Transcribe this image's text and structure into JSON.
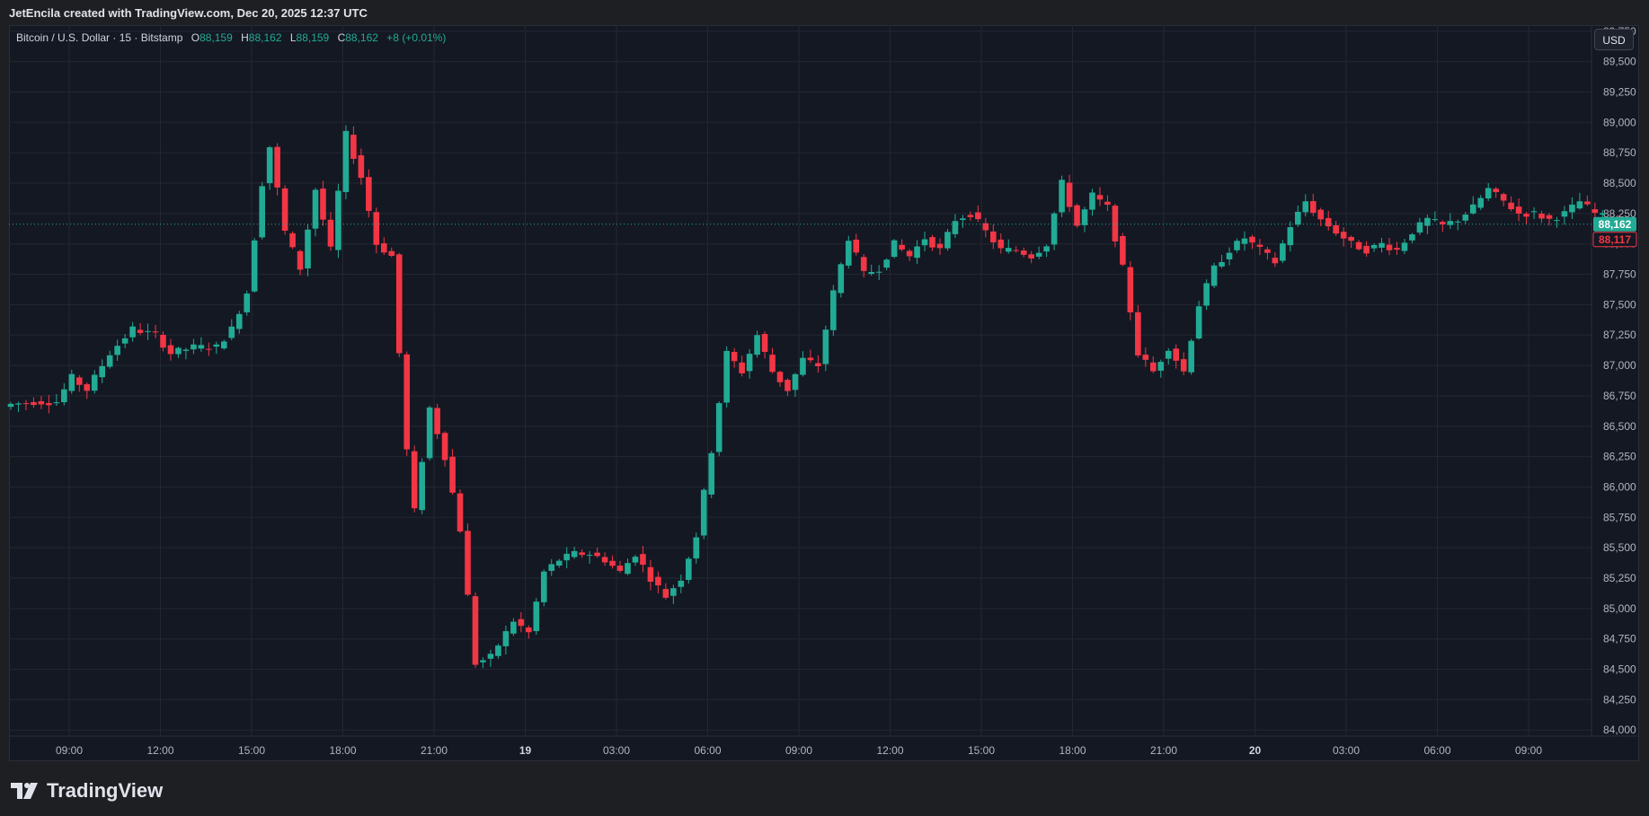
{
  "header": {
    "title": "JetEncila created with TradingView.com, Dec 20, 2025 12:37 UTC"
  },
  "legend": {
    "symbol": "Bitcoin / U.S. Dollar · 15 · Bitstamp",
    "o_label": "O",
    "o_value": "88,159",
    "h_label": "H",
    "h_value": "88,162",
    "l_label": "L",
    "l_value": "88,159",
    "c_label": "C",
    "c_value": "88,162",
    "change": "+8 (+0.01%)"
  },
  "currency_button": "USD",
  "brand": {
    "name": "TradingView",
    "logo_icon": "tradingview-logo-icon"
  },
  "colors": {
    "up": "#22ab94",
    "down": "#f23645",
    "background": "#141823",
    "grid": "#232733"
  },
  "chart_data": {
    "type": "candlestick",
    "title": "Bitcoin / U.S. Dollar · 15 · Bitstamp",
    "y_ticks": [
      84000,
      84250,
      84500,
      84750,
      85000,
      85250,
      85500,
      85750,
      86000,
      86250,
      86500,
      86750,
      87000,
      87250,
      87500,
      87750,
      88000,
      88250,
      88500,
      88750,
      89000,
      89250,
      89500,
      89750
    ],
    "y_tick_labels": [
      "84,000",
      "84,250",
      "84,500",
      "84,750",
      "85,000",
      "85,250",
      "85,500",
      "85,750",
      "86,000",
      "86,250",
      "86,500",
      "86,750",
      "87,000",
      "87,250",
      "87,500",
      "87,750",
      "88,000",
      "88,250",
      "88,500",
      "88,750",
      "89,000",
      "89,250",
      "89,500",
      "89,750"
    ],
    "ylim": [
      83950,
      89800
    ],
    "x_ticks": [
      {
        "label": "09:00",
        "bold": false,
        "hours": 9
      },
      {
        "label": "12:00",
        "bold": false,
        "hours": 12
      },
      {
        "label": "15:00",
        "bold": false,
        "hours": 15
      },
      {
        "label": "18:00",
        "bold": false,
        "hours": 18
      },
      {
        "label": "21:00",
        "bold": false,
        "hours": 21
      },
      {
        "label": "19",
        "bold": true,
        "hours": 24
      },
      {
        "label": "03:00",
        "bold": false,
        "hours": 27
      },
      {
        "label": "06:00",
        "bold": false,
        "hours": 30
      },
      {
        "label": "09:00",
        "bold": false,
        "hours": 33
      },
      {
        "label": "12:00",
        "bold": false,
        "hours": 36
      },
      {
        "label": "15:00",
        "bold": false,
        "hours": 39
      },
      {
        "label": "18:00",
        "bold": false,
        "hours": 42
      },
      {
        "label": "21:00",
        "bold": false,
        "hours": 45
      },
      {
        "label": "20",
        "bold": true,
        "hours": 48
      },
      {
        "label": "03:00",
        "bold": false,
        "hours": 51
      },
      {
        "label": "06:00",
        "bold": false,
        "hours": 54
      },
      {
        "label": "09:00",
        "bold": false,
        "hours": 57
      }
    ],
    "x_start_hours": 7.25,
    "candle_interval_hours": 0.25,
    "last_price": 88162,
    "last_price_label": "88,162",
    "prev_close": 88117,
    "prev_close_label": "88,117",
    "anchors": [
      [
        0,
        86680,
        86700
      ],
      [
        3,
        86700,
        86750
      ],
      [
        6,
        86700,
        86800
      ],
      [
        8,
        86900,
        86950
      ],
      [
        10,
        86800,
        86900
      ],
      [
        11,
        86900,
        87000
      ],
      [
        13,
        87100,
        87200
      ],
      [
        16,
        87300,
        87320
      ],
      [
        19,
        87250,
        87300
      ],
      [
        21,
        87100,
        87150
      ],
      [
        24,
        87150,
        87200
      ],
      [
        27,
        87150,
        87250
      ],
      [
        29,
        87300,
        87350
      ],
      [
        31,
        87600,
        87750
      ],
      [
        33,
        88500,
        88800
      ],
      [
        34,
        88800,
        88900
      ],
      [
        36,
        88100,
        88150
      ],
      [
        38,
        87800,
        88000
      ],
      [
        40,
        88450,
        88550
      ],
      [
        42,
        87950,
        88100
      ],
      [
        44,
        88900,
        89000
      ],
      [
        46,
        88550,
        88600
      ],
      [
        48,
        88000,
        88150
      ],
      [
        50,
        87900,
        88000
      ],
      [
        52,
        86300,
        86500
      ],
      [
        53,
        85800,
        85900
      ],
      [
        55,
        86650,
        86800
      ],
      [
        57,
        86250,
        86300
      ],
      [
        59,
        85650,
        85800
      ],
      [
        61,
        84550,
        84700
      ],
      [
        63,
        84600,
        84700
      ],
      [
        66,
        84900,
        85000
      ],
      [
        68,
        84800,
        85000
      ],
      [
        70,
        85300,
        85500
      ],
      [
        72,
        85400,
        85600
      ],
      [
        74,
        85450,
        85600
      ],
      [
        76,
        85450,
        85550
      ],
      [
        78,
        85400,
        85500
      ],
      [
        80,
        85300,
        85350
      ],
      [
        82,
        85450,
        85500
      ],
      [
        84,
        85250,
        85300
      ],
      [
        86,
        85100,
        85200
      ],
      [
        88,
        85250,
        85400
      ],
      [
        90,
        85600,
        85700
      ],
      [
        92,
        86300,
        86600
      ],
      [
        94,
        87100,
        87200
      ],
      [
        96,
        86950,
        87100
      ],
      [
        98,
        87250,
        87300
      ],
      [
        100,
        86950,
        87050
      ],
      [
        102,
        86800,
        86900
      ],
      [
        104,
        87050,
        87100
      ],
      [
        106,
        87000,
        87050
      ],
      [
        108,
        87600,
        87800
      ],
      [
        110,
        88050,
        88150
      ],
      [
        112,
        87750,
        87800
      ],
      [
        114,
        87800,
        87900
      ],
      [
        116,
        88000,
        88100
      ],
      [
        118,
        87900,
        87950
      ],
      [
        120,
        88050,
        88150
      ],
      [
        122,
        87950,
        88050
      ],
      [
        124,
        88200,
        88300
      ],
      [
        126,
        88250,
        88300
      ],
      [
        128,
        88100,
        88150
      ],
      [
        130,
        87950,
        88000
      ],
      [
        132,
        87950,
        88050
      ],
      [
        134,
        87900,
        88000
      ],
      [
        136,
        88000,
        88100
      ],
      [
        138,
        88500,
        88700
      ],
      [
        140,
        88150,
        88250
      ],
      [
        142,
        88400,
        88500
      ],
      [
        144,
        88300,
        88400
      ],
      [
        146,
        87800,
        87900
      ],
      [
        148,
        87100,
        87300
      ],
      [
        150,
        86950,
        87000
      ],
      [
        152,
        87150,
        87250
      ],
      [
        154,
        86950,
        87100
      ],
      [
        156,
        87500,
        87600
      ],
      [
        158,
        87800,
        87900
      ],
      [
        160,
        87950,
        88000
      ],
      [
        162,
        88050,
        88100
      ],
      [
        164,
        87950,
        88000
      ],
      [
        166,
        87850,
        87900
      ],
      [
        168,
        88150,
        88250
      ],
      [
        170,
        88350,
        88300
      ],
      [
        172,
        88200,
        88250
      ],
      [
        174,
        88100,
        88050
      ],
      [
        176,
        88000,
        88050
      ],
      [
        178,
        87950,
        88000
      ],
      [
        180,
        88000,
        88050
      ],
      [
        182,
        87950,
        88000
      ],
      [
        184,
        88100,
        88200
      ],
      [
        186,
        88200,
        88250
      ],
      [
        188,
        88150,
        88250
      ],
      [
        190,
        88200,
        88250
      ],
      [
        192,
        88300,
        88300
      ],
      [
        194,
        88450,
        88400
      ],
      [
        196,
        88350,
        88350
      ],
      [
        198,
        88250,
        88300
      ],
      [
        200,
        88250,
        88250
      ],
      [
        202,
        88200,
        88300
      ],
      [
        204,
        88250,
        88250
      ],
      [
        206,
        88350,
        88300
      ],
      [
        208,
        88250,
        88250
      ],
      [
        210,
        88200,
        88200
      ],
      [
        212,
        88162,
        88162
      ]
    ]
  }
}
